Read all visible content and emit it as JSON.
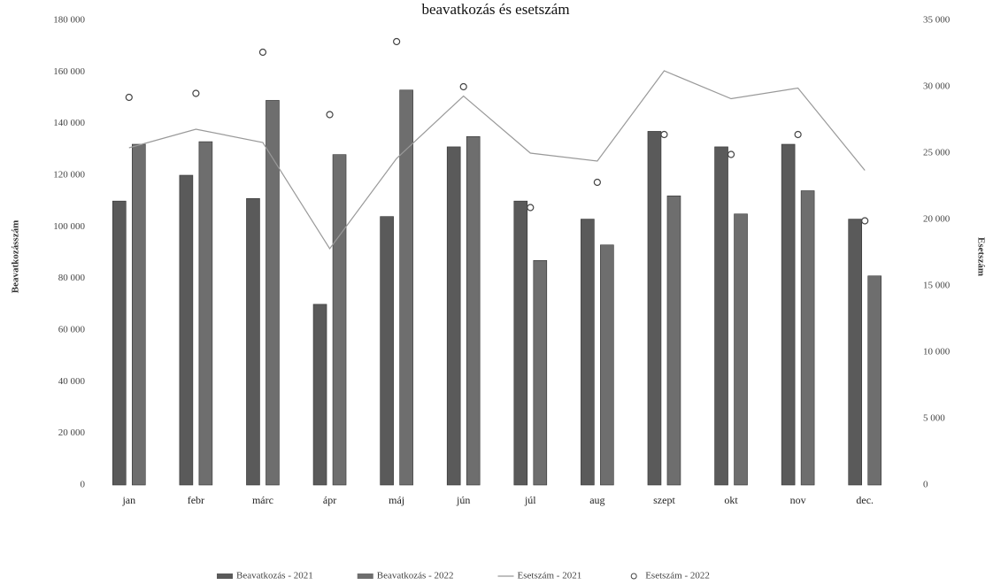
{
  "chart_data": {
    "type": "bar-line",
    "title": "beavatkozás és esetszám",
    "ylabel": "Beavatkozásszám",
    "y2label": "Esetszám",
    "categories": [
      "jan",
      "febr",
      "márc",
      "ápr",
      "máj",
      "jún",
      "júl",
      "aug",
      "szept",
      "okt",
      "nov",
      "dec."
    ],
    "series": [
      {
        "name": "Beavatkozás - 2021",
        "type": "bar",
        "color": "#5a5a5a",
        "values": [
          110000,
          120000,
          111000,
          70000,
          104000,
          131000,
          110000,
          103000,
          137000,
          131000,
          132000,
          103000
        ]
      },
      {
        "name": "Beavatkozás - 2022",
        "type": "bar",
        "color": "#6e6e6e",
        "values": [
          132000,
          133000,
          149000,
          128000,
          153000,
          135000,
          87000,
          93000,
          112000,
          105000,
          114000,
          81000
        ]
      },
      {
        "name": "Esetszám - 2021",
        "type": "line",
        "axis": "y2",
        "color": "#999999",
        "values": [
          25400,
          26800,
          25800,
          17800,
          24600,
          29300,
          25000,
          24400,
          31200,
          29100,
          29900,
          23700
        ]
      },
      {
        "name": "Esetszám - 2022",
        "type": "marker",
        "axis": "y2",
        "color": "#444444",
        "values": [
          29200,
          29500,
          32600,
          27900,
          33400,
          30000,
          20900,
          22800,
          26400,
          24900,
          26400,
          19900
        ]
      }
    ],
    "ylim": [
      0,
      180000
    ],
    "yticks": [
      0,
      {
        "value": 20000,
        "label": "20 000"
      },
      {
        "value": 40000,
        "label": "40 000"
      },
      {
        "value": 60000,
        "label": "60 000"
      },
      {
        "value": 80000,
        "label": "80 000"
      },
      {
        "value": 100000,
        "label": "100 000"
      },
      {
        "value": 120000,
        "label": "120 000"
      },
      {
        "value": 140000,
        "label": "140 000"
      },
      {
        "value": 160000,
        "label": "160 000"
      },
      {
        "value": 180000,
        "label": "180 000"
      }
    ],
    "y2lim": [
      0,
      35000
    ],
    "y2ticks": [
      0,
      {
        "value": 5000,
        "label": "5 000"
      },
      {
        "value": 10000,
        "label": "10 000"
      },
      {
        "value": 15000,
        "label": "15 000"
      },
      {
        "value": 20000,
        "label": "20 000"
      },
      {
        "value": 25000,
        "label": "25 000"
      },
      {
        "value": 30000,
        "label": "30 000"
      },
      {
        "value": 35000,
        "label": "35 000"
      }
    ],
    "legend": "bottom"
  }
}
